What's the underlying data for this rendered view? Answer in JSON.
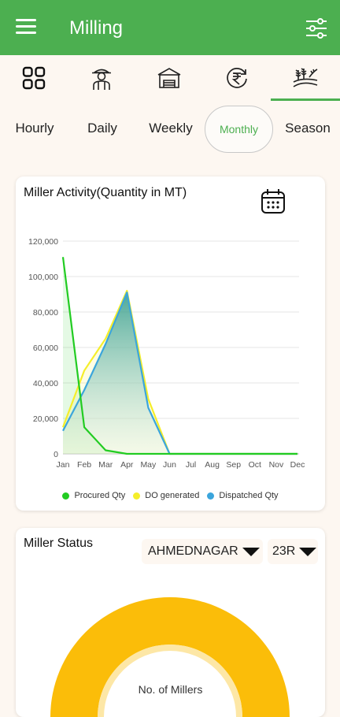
{
  "appbar": {
    "title": "Milling",
    "menu_icon": "hamburger-menu-icon",
    "filter_icon": "sliders-filter-icon"
  },
  "icon_tabs": [
    {
      "icon": "grid-dashboard-icon"
    },
    {
      "icon": "farmer-icon"
    },
    {
      "icon": "warehouse-icon"
    },
    {
      "icon": "rupee-payment-icon"
    },
    {
      "icon": "paddy-field-icon",
      "active": true
    }
  ],
  "periods": [
    {
      "label": "Hourly"
    },
    {
      "label": "Daily"
    },
    {
      "label": "Weekly"
    },
    {
      "label": "Monthly",
      "active": true
    },
    {
      "label": "Season"
    }
  ],
  "activity_card": {
    "title": "Miller Activity(Quantity in MT)",
    "calendar_icon": "calendar-icon"
  },
  "chart_data": {
    "type": "area",
    "title": "Miller Activity(Quantity in MT)",
    "categories": [
      "Jan",
      "Feb",
      "Mar",
      "Apr",
      "May",
      "Jun",
      "Jul",
      "Aug",
      "Sep",
      "Oct",
      "Nov",
      "Dec"
    ],
    "ylim": [
      0,
      120000
    ],
    "yticks": [
      "120,000",
      "100,000",
      "80,000",
      "60,000",
      "40,000",
      "20,000",
      "0"
    ],
    "ytick_values": [
      120000,
      100000,
      80000,
      60000,
      40000,
      20000,
      0
    ],
    "grid": true,
    "legend_position": "bottom",
    "series": [
      {
        "name": "Procured Qty",
        "color": "#22cc22",
        "values": [
          111000,
          15000,
          2000,
          0,
          0,
          0,
          0,
          0,
          0,
          0,
          0,
          0
        ]
      },
      {
        "name": "DO generated",
        "color": "#f5ee2a",
        "values": [
          15000,
          47000,
          65000,
          92000,
          31000,
          0,
          0,
          0,
          0,
          0,
          0,
          0
        ]
      },
      {
        "name": "Dispatched Qty",
        "color": "#3ba5dc",
        "values": [
          13000,
          36000,
          62000,
          91000,
          26000,
          0,
          0,
          0,
          0,
          0,
          0,
          0
        ]
      }
    ]
  },
  "status_card": {
    "title": "Miller Status",
    "district": "AHMEDNAGAR",
    "season": "23R",
    "gauge_label": "No. of Millers",
    "gauge_color": "#fbbd09"
  }
}
